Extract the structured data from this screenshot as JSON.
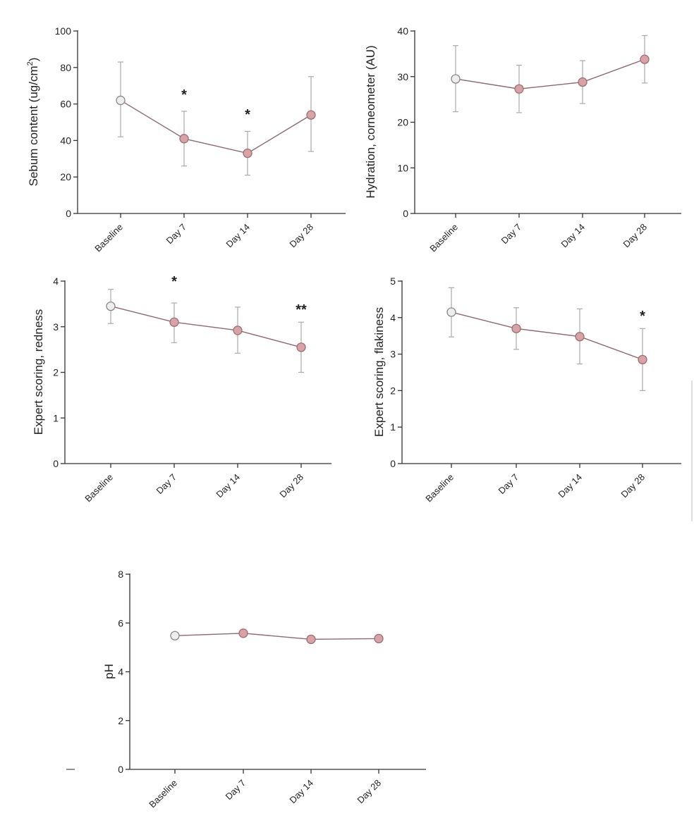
{
  "chart_data": [
    {
      "type": "line",
      "ylabel_main": "Sebum content (ug/cm",
      "ylabel_sup": "2",
      "ylabel_end": ")",
      "categories": [
        "Baseline",
        "Day 7",
        "Day 14",
        "Day 28"
      ],
      "ylim": [
        0,
        100
      ],
      "yticks": [
        0,
        20,
        40,
        60,
        80,
        100
      ],
      "values": [
        62,
        41,
        33,
        54
      ],
      "errors": [
        [
          42,
          83
        ],
        [
          26,
          56
        ],
        [
          21,
          45
        ],
        [
          34,
          75
        ]
      ],
      "significance": [
        "",
        "*",
        "*",
        ""
      ]
    },
    {
      "type": "line",
      "ylabel_main": "Hydration, corneometer (AU)",
      "categories": [
        "Baseline",
        "Day 7",
        "Day 14",
        "Day 28"
      ],
      "ylim": [
        0,
        40
      ],
      "yticks": [
        0,
        10,
        20,
        30,
        40
      ],
      "values": [
        29.5,
        27.3,
        28.8,
        33.8
      ],
      "errors": [
        [
          22.3,
          36.8
        ],
        [
          22.1,
          32.5
        ],
        [
          24.1,
          33.5
        ],
        [
          28.6,
          39.0
        ]
      ],
      "significance": [
        "",
        "",
        "",
        ""
      ]
    },
    {
      "type": "line",
      "ylabel_main": "Expert scoring, redness",
      "categories": [
        "Baseline",
        "Day 7",
        "Day 14",
        "Day 28"
      ],
      "ylim": [
        0,
        4
      ],
      "yticks": [
        0,
        1,
        2,
        3,
        4
      ],
      "values": [
        3.45,
        3.1,
        2.92,
        2.55
      ],
      "errors": [
        [
          3.07,
          3.82
        ],
        [
          2.65,
          3.52
        ],
        [
          2.42,
          3.43
        ],
        [
          2.0,
          3.1
        ]
      ],
      "significance": [
        "",
        "*",
        "",
        "**"
      ]
    },
    {
      "type": "line",
      "ylabel_main": "Expert scoring, flakiness",
      "categories": [
        "Baseline",
        "Day 7",
        "Day 14",
        "Day 28"
      ],
      "ylim": [
        0,
        5
      ],
      "yticks": [
        0,
        1,
        2,
        3,
        4,
        5
      ],
      "values": [
        4.15,
        3.7,
        3.48,
        2.85
      ],
      "errors": [
        [
          3.47,
          4.82
        ],
        [
          3.13,
          4.27
        ],
        [
          2.73,
          4.24
        ],
        [
          2.0,
          3.7
        ]
      ],
      "significance": [
        "",
        "",
        "",
        "*"
      ]
    },
    {
      "type": "line",
      "ylabel_main": "pH",
      "categories": [
        "Baseline",
        "Day 7",
        "Day 14",
        "Day 28"
      ],
      "ylim": [
        0,
        8
      ],
      "yticks": [
        0,
        2,
        4,
        6,
        8
      ],
      "values": [
        5.48,
        5.58,
        5.33,
        5.36
      ],
      "errors": [
        [
          5.35,
          5.6
        ],
        [
          5.48,
          5.68
        ],
        [
          5.25,
          5.42
        ],
        [
          5.28,
          5.45
        ]
      ],
      "significance": [
        "",
        "",
        "",
        ""
      ]
    }
  ],
  "colors": {
    "baseline_marker_fill": "#eeeeee",
    "baseline_marker_stroke": "#888888",
    "marker_fill": "#d9a2a6",
    "marker_stroke": "#9a6e72",
    "line": "#8c6a6e",
    "error_bar": "#aaaaaa",
    "axis": "#333333"
  }
}
